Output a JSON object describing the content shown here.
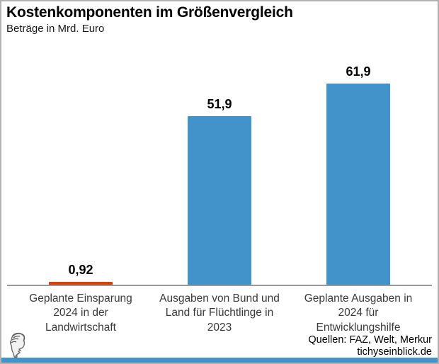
{
  "header": {
    "title": "Kostenkomponenten im Größenvergleich",
    "subtitle": "Beträge in Mrd. Euro"
  },
  "chart_data": {
    "type": "bar",
    "title": "Kostenkomponenten im Größenvergleich",
    "subtitle": "Beträge in Mrd. Euro",
    "unit": "Mrd. Euro",
    "categories": [
      "Geplante Einsparung 2024 in der Landwirtschaft",
      "Ausgaben von Bund und Land für Flüchtlinge in 2023",
      "Geplante Ausgaben in 2024 für Entwicklungshilfe"
    ],
    "category_lines": [
      [
        "Geplante Einsparung",
        "2024 in der",
        "Landwirtschaft"
      ],
      [
        "Ausgaben von Bund und",
        "Land für Flüchtlinge in",
        "2023"
      ],
      [
        "Geplante Ausgaben in",
        "2024 für",
        "Entwicklungshilfe"
      ]
    ],
    "values": [
      0.92,
      51.9,
      61.9
    ],
    "value_labels": [
      "0,92",
      "51,9",
      "61,9"
    ],
    "bar_colors": [
      "#d84008",
      "#4193c9",
      "#4193c9"
    ],
    "ylim": [
      0,
      65
    ],
    "grid": false,
    "legend": false,
    "baseline_color": "#999999"
  },
  "footer": {
    "sources_line": "Quellen: FAZ, Welt, Merkur",
    "site_line": "tichyseinblick.de",
    "logo": "hermes-head-logo"
  },
  "colors": {
    "accent_blue": "#4193c9",
    "accent_red": "#d84008",
    "border_gray": "#b2b2b2",
    "axis_gray": "#999999"
  }
}
